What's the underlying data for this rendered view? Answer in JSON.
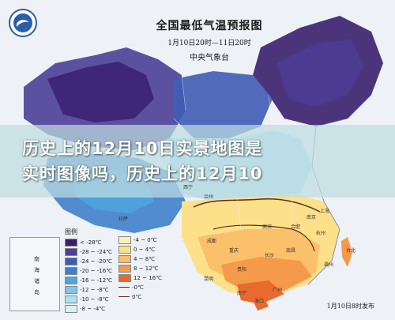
{
  "map": {
    "title": "全国最低气温预报图",
    "subtitle": "1月10日20时—11日20时",
    "issuer": "中央气象台",
    "issue_note": "1月10日8时发布",
    "legend_title": "图例",
    "legend_items": [
      {
        "label": "< -28℃",
        "color": "#3a1f6e"
      },
      {
        "label": "-28 ~ -24℃",
        "color": "#4b3f97"
      },
      {
        "label": "-24 ~ -20℃",
        "color": "#3f5cb5"
      },
      {
        "label": "-20 ~ -16℃",
        "color": "#3f7fcc"
      },
      {
        "label": "-16 ~ -12℃",
        "color": "#4fa3df"
      },
      {
        "label": "-12 ~ -8℃",
        "color": "#7cc7ea"
      },
      {
        "label": "-10 ~ -8℃",
        "color": "#aee0f2"
      },
      {
        "label": "-8 ~ -4℃",
        "color": "#d8f0f8"
      }
    ],
    "legend_items_warm": [
      {
        "label": "-4 ~ 0℃",
        "color": "#fbf3b0"
      },
      {
        "label": "0 ~ 4℃",
        "color": "#fde08a"
      },
      {
        "label": "4 ~ 8℃",
        "color": "#fbc06a"
      },
      {
        "label": "8 ~ 12℃",
        "color": "#f49a4a"
      },
      {
        "label": "12 ~ 16℃",
        "color": "#e86a2e"
      }
    ],
    "legend_line_label": "-0℃",
    "legend_line_label2": "0℃",
    "inset_labels": [
      "南",
      "海",
      "诸",
      "岛"
    ],
    "place_labels": [
      "拉萨",
      "西宁",
      "兰州",
      "成都",
      "重庆",
      "贵阳",
      "长沙",
      "南昌",
      "杭州",
      "福州",
      "广州",
      "南宁",
      "海口",
      "台北",
      "武汉",
      "合肥",
      "南京",
      "上海",
      "昆明"
    ]
  },
  "overlay": {
    "line1": "历史上的12月10日实景地图是",
    "line2": "实时图像吗，历史上的12月10"
  },
  "colors": {
    "cold_deep": "#3a1f6e",
    "cold_mid": "#3f7fcc",
    "cold_light": "#aee0f2",
    "warm_light": "#fbf3b0",
    "warm_mid": "#fbc06a",
    "warm_deep": "#e86a2e",
    "overlay_band": "#bedce1"
  }
}
